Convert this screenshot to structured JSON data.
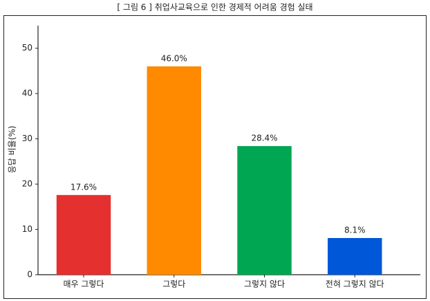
{
  "chart_data": {
    "type": "bar",
    "title": "[ 그림 6 ] 취업사교육으로 인한 경제적 어려움 경험 실태",
    "y_label": "응답 비율(%)",
    "categories": [
      "매우 그렇다",
      "그렇다",
      "그렇지 않다",
      "전혀 그렇지 않다"
    ],
    "values": [
      17.6,
      46.0,
      28.4,
      8.1
    ],
    "value_labels": [
      "17.6%",
      "46.0%",
      "28.4%",
      "8.1%"
    ],
    "colors": [
      "#e53030",
      "#ff8a00",
      "#00a651",
      "#0057d8"
    ],
    "ylim": [
      0,
      55
    ],
    "yticks": [
      0,
      10,
      20,
      30,
      40,
      50
    ],
    "grid": false
  }
}
